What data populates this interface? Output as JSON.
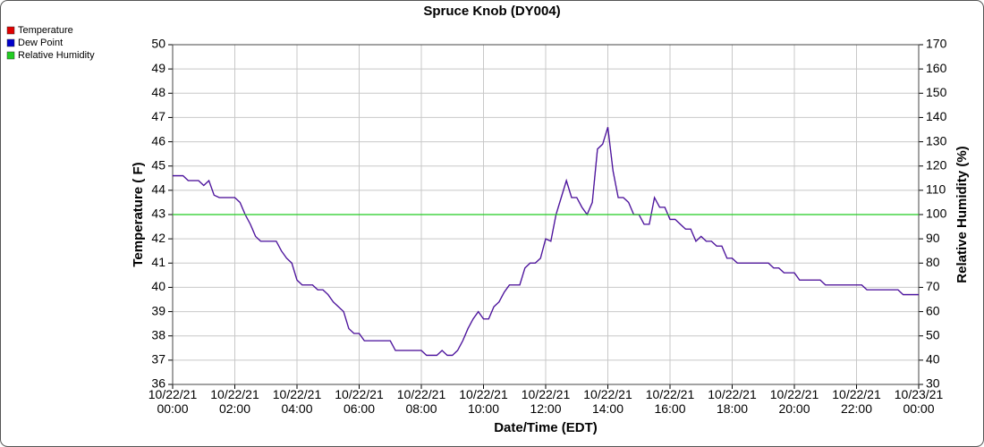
{
  "chart_data": {
    "type": "line",
    "title": "Spruce Knob (DY004)",
    "x_label": "Date/Time (EDT)",
    "y_label": "Temperature ( F)",
    "y2_label": "Relative Humidity (%)",
    "x": [
      "10/22/21 00:00",
      "10/22/21 00:20",
      "10/22/21 00:30",
      "10/22/21 00:50",
      "10/22/21 01:00",
      "10/22/21 01:10",
      "10/22/21 01:20",
      "10/22/21 01:30",
      "10/22/21 02:00",
      "10/22/21 02:10",
      "10/22/21 02:20",
      "10/22/21 02:30",
      "10/22/21 02:40",
      "10/22/21 02:50",
      "10/22/21 03:20",
      "10/22/21 03:30",
      "10/22/21 03:40",
      "10/22/21 03:50",
      "10/22/21 04:00",
      "10/22/21 04:10",
      "10/22/21 04:30",
      "10/22/21 04:40",
      "10/22/21 04:50",
      "10/22/21 05:00",
      "10/22/21 05:10",
      "10/22/21 05:20",
      "10/22/21 05:30",
      "10/22/21 05:40",
      "10/22/21 05:50",
      "10/22/21 06:00",
      "10/22/21 06:10",
      "10/22/21 07:00",
      "10/22/21 07:10",
      "10/22/21 08:00",
      "10/22/21 08:10",
      "10/22/21 08:30",
      "10/22/21 08:40",
      "10/22/21 08:50",
      "10/22/21 09:00",
      "10/22/21 09:10",
      "10/22/21 09:20",
      "10/22/21 09:30",
      "10/22/21 09:40",
      "10/22/21 09:50",
      "10/22/21 10:00",
      "10/22/21 10:10",
      "10/22/21 10:20",
      "10/22/21 10:30",
      "10/22/21 10:40",
      "10/22/21 10:50",
      "10/22/21 11:10",
      "10/22/21 11:20",
      "10/22/21 11:30",
      "10/22/21 11:40",
      "10/22/21 11:50",
      "10/22/21 12:00",
      "10/22/21 12:10",
      "10/22/21 12:20",
      "10/22/21 12:30",
      "10/22/21 12:40",
      "10/22/21 12:50",
      "10/22/21 13:00",
      "10/22/21 13:10",
      "10/22/21 13:20",
      "10/22/21 13:30",
      "10/22/21 13:40",
      "10/22/21 13:50",
      "10/22/21 14:00",
      "10/22/21 14:10",
      "10/22/21 14:20",
      "10/22/21 14:30",
      "10/22/21 14:40",
      "10/22/21 14:50",
      "10/22/21 15:00",
      "10/22/21 15:10",
      "10/22/21 15:20",
      "10/22/21 15:30",
      "10/22/21 15:40",
      "10/22/21 15:50",
      "10/22/21 16:00",
      "10/22/21 16:10",
      "10/22/21 16:20",
      "10/22/21 16:30",
      "10/22/21 16:40",
      "10/22/21 16:50",
      "10/22/21 17:00",
      "10/22/21 17:10",
      "10/22/21 17:20",
      "10/22/21 17:30",
      "10/22/21 17:40",
      "10/22/21 17:50",
      "10/22/21 18:00",
      "10/22/21 18:10",
      "10/22/21 19:10",
      "10/22/21 19:20",
      "10/22/21 19:30",
      "10/22/21 19:40",
      "10/22/21 20:00",
      "10/22/21 20:10",
      "10/22/21 20:50",
      "10/22/21 21:00",
      "10/22/21 22:10",
      "10/22/21 22:20",
      "10/22/21 23:20",
      "10/22/21 23:30",
      "10/23/21 00:00"
    ],
    "series": [
      {
        "name": "Temperature",
        "color": "#e00000",
        "values": [
          44.6,
          44.6,
          44.4,
          44.4,
          44.2,
          44.4,
          43.8,
          43.7,
          43.7,
          43.5,
          43.0,
          42.6,
          42.1,
          41.9,
          41.9,
          41.5,
          41.2,
          41.0,
          40.3,
          40.1,
          40.1,
          39.9,
          39.9,
          39.7,
          39.4,
          39.2,
          39.0,
          38.3,
          38.1,
          38.1,
          37.8,
          37.8,
          37.4,
          37.4,
          37.2,
          37.2,
          37.4,
          37.2,
          37.2,
          37.4,
          37.8,
          38.3,
          38.7,
          39.0,
          38.7,
          38.7,
          39.2,
          39.4,
          39.8,
          40.1,
          40.1,
          40.8,
          41.0,
          41.0,
          41.2,
          42.0,
          41.9,
          43.0,
          43.7,
          44.4,
          43.7,
          43.7,
          43.3,
          43.0,
          43.5,
          45.7,
          45.9,
          46.6,
          44.8,
          43.7,
          43.7,
          43.5,
          43.0,
          43.0,
          42.6,
          42.6,
          43.7,
          43.3,
          43.3,
          42.8,
          42.8,
          42.6,
          42.4,
          42.4,
          41.9,
          42.1,
          41.9,
          41.9,
          41.7,
          41.7,
          41.2,
          41.2,
          41.0,
          41.0,
          40.8,
          40.8,
          40.6,
          40.6,
          40.3,
          40.3,
          40.1,
          40.1,
          39.9,
          39.9,
          39.7,
          39.7
        ]
      },
      {
        "name": "Dew Point",
        "color": "#0000cc",
        "values": [
          44.6,
          44.6,
          44.4,
          44.4,
          44.2,
          44.4,
          43.8,
          43.7,
          43.7,
          43.5,
          43.0,
          42.6,
          42.1,
          41.9,
          41.9,
          41.5,
          41.2,
          41.0,
          40.3,
          40.1,
          40.1,
          39.9,
          39.9,
          39.7,
          39.4,
          39.2,
          39.0,
          38.3,
          38.1,
          38.1,
          37.8,
          37.8,
          37.4,
          37.4,
          37.2,
          37.2,
          37.4,
          37.2,
          37.2,
          37.4,
          37.8,
          38.3,
          38.7,
          39.0,
          38.7,
          38.7,
          39.2,
          39.4,
          39.8,
          40.1,
          40.1,
          40.8,
          41.0,
          41.0,
          41.2,
          42.0,
          41.9,
          43.0,
          43.7,
          44.4,
          43.7,
          43.7,
          43.3,
          43.0,
          43.5,
          45.7,
          45.9,
          46.6,
          44.8,
          43.7,
          43.7,
          43.5,
          43.0,
          43.0,
          42.6,
          42.6,
          43.7,
          43.3,
          43.3,
          42.8,
          42.8,
          42.6,
          42.4,
          42.4,
          41.9,
          42.1,
          41.9,
          41.9,
          41.7,
          41.7,
          41.2,
          41.2,
          41.0,
          41.0,
          40.8,
          40.8,
          40.6,
          40.6,
          40.3,
          40.3,
          40.1,
          40.1,
          39.9,
          39.9,
          39.7,
          39.7
        ]
      },
      {
        "name": "Relative Humidity",
        "color": "#22cc22",
        "axis": "y2",
        "values": [
          100,
          100,
          100,
          100,
          100,
          100,
          100,
          100,
          100,
          100,
          100,
          100,
          100,
          100,
          100,
          100,
          100,
          100,
          100,
          100,
          100,
          100,
          100,
          100,
          100,
          100,
          100,
          100,
          100,
          100,
          100,
          100,
          100,
          100,
          100,
          100,
          100,
          100,
          100,
          100,
          100,
          100,
          100,
          100,
          100,
          100,
          100,
          100,
          100,
          100,
          100,
          100,
          100,
          100,
          100,
          100,
          100,
          100,
          100,
          100,
          100,
          100,
          100,
          100,
          100,
          100,
          100,
          100,
          100,
          100,
          100,
          100,
          100,
          100,
          100,
          100,
          100,
          100,
          100,
          100,
          100,
          100,
          100,
          100,
          100,
          100,
          100,
          100,
          100,
          100,
          100,
          100,
          100,
          100,
          100,
          100,
          100,
          100,
          100,
          100,
          100,
          100,
          100,
          100,
          100,
          100
        ]
      }
    ],
    "xlim": [
      "10/22/21 00:00",
      "10/23/21 00:00"
    ],
    "xticks": [
      "10/22/21 00:00",
      "10/22/21 02:00",
      "10/22/21 04:00",
      "10/22/21 06:00",
      "10/22/21 08:00",
      "10/22/21 10:00",
      "10/22/21 12:00",
      "10/22/21 14:00",
      "10/22/21 16:00",
      "10/22/21 18:00",
      "10/22/21 20:00",
      "10/22/21 22:00",
      "10/23/21 00:00"
    ],
    "ylim": [
      36,
      50
    ],
    "yticks": [
      36,
      37,
      38,
      39,
      40,
      41,
      42,
      43,
      44,
      45,
      46,
      47,
      48,
      49,
      50
    ],
    "y2lim": [
      30,
      170
    ],
    "y2ticks": [
      30,
      40,
      50,
      60,
      70,
      80,
      90,
      100,
      110,
      120,
      130,
      140,
      150,
      160,
      170
    ],
    "grid": true,
    "legend": "top-left"
  }
}
